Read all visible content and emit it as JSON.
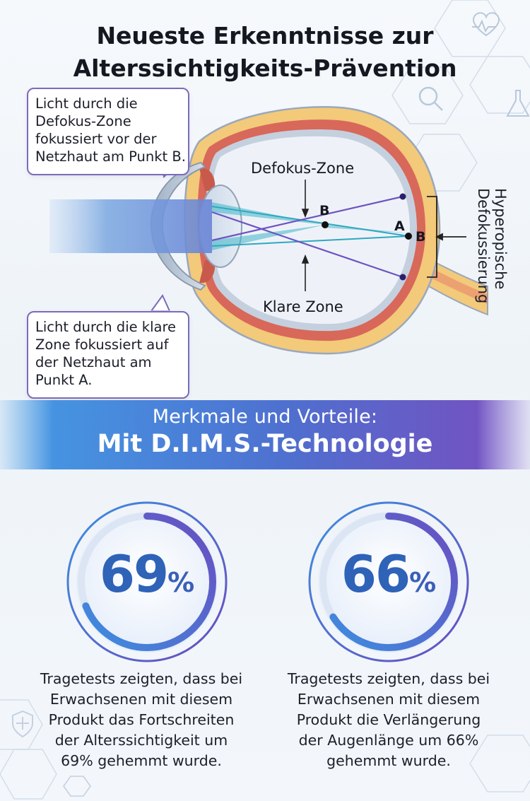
{
  "title": {
    "line1": "Neueste Erkenntnisse zur",
    "line2": "Alterssichtigkeits-Prävention"
  },
  "diagram": {
    "bubble_top": [
      "Licht durch die",
      "Defokus-Zone",
      "fokussiert vor der",
      "Netzhaut am Punkt B."
    ],
    "bubble_bottom": [
      "Licht durch die klare",
      "Zone fokussiert auf",
      "der Netzhaut am",
      "Punkt A."
    ],
    "label_defocus_zone": "Defokus-Zone",
    "label_clear_zone": "Klare Zone",
    "point_b_front": "B",
    "point_a": "A",
    "point_b_retina": "B",
    "vertical_label_line1": "Hyperopische",
    "vertical_label_line2": "Defokussierung"
  },
  "banner": {
    "subtitle": "Merkmale und Vorteile:",
    "title": "Mit D.I.M.S.-Technologie"
  },
  "stats": [
    {
      "value": "69",
      "unit": "%",
      "fraction": 0.69,
      "description": [
        "Tragetests zeigten, dass bei",
        "Erwachsenen mit diesem",
        "Produkt das Fortschreiten",
        "der Alterssichtigkeit um",
        "69% gehemmt wurde."
      ]
    },
    {
      "value": "66",
      "unit": "%",
      "fraction": 0.66,
      "description": [
        "Tragetests zeigten, dass bei",
        "Erwachsenen mit diesem",
        "Produkt die Verlängerung",
        "der Augenlänge um 66%",
        "gehemmt wurde."
      ]
    }
  ],
  "colors": {
    "accent_blue": "#2e7fd4",
    "accent_purple": "#6a4cc0",
    "bubble_border": "#7b6bb8",
    "sclera": "#f3c97a",
    "choroid": "#d8685a",
    "eye_interior": "#eef2f8"
  },
  "icons": [
    "heart-monitor-icon",
    "magnifier-icon",
    "flask-icon",
    "shield-cross-icon"
  ]
}
